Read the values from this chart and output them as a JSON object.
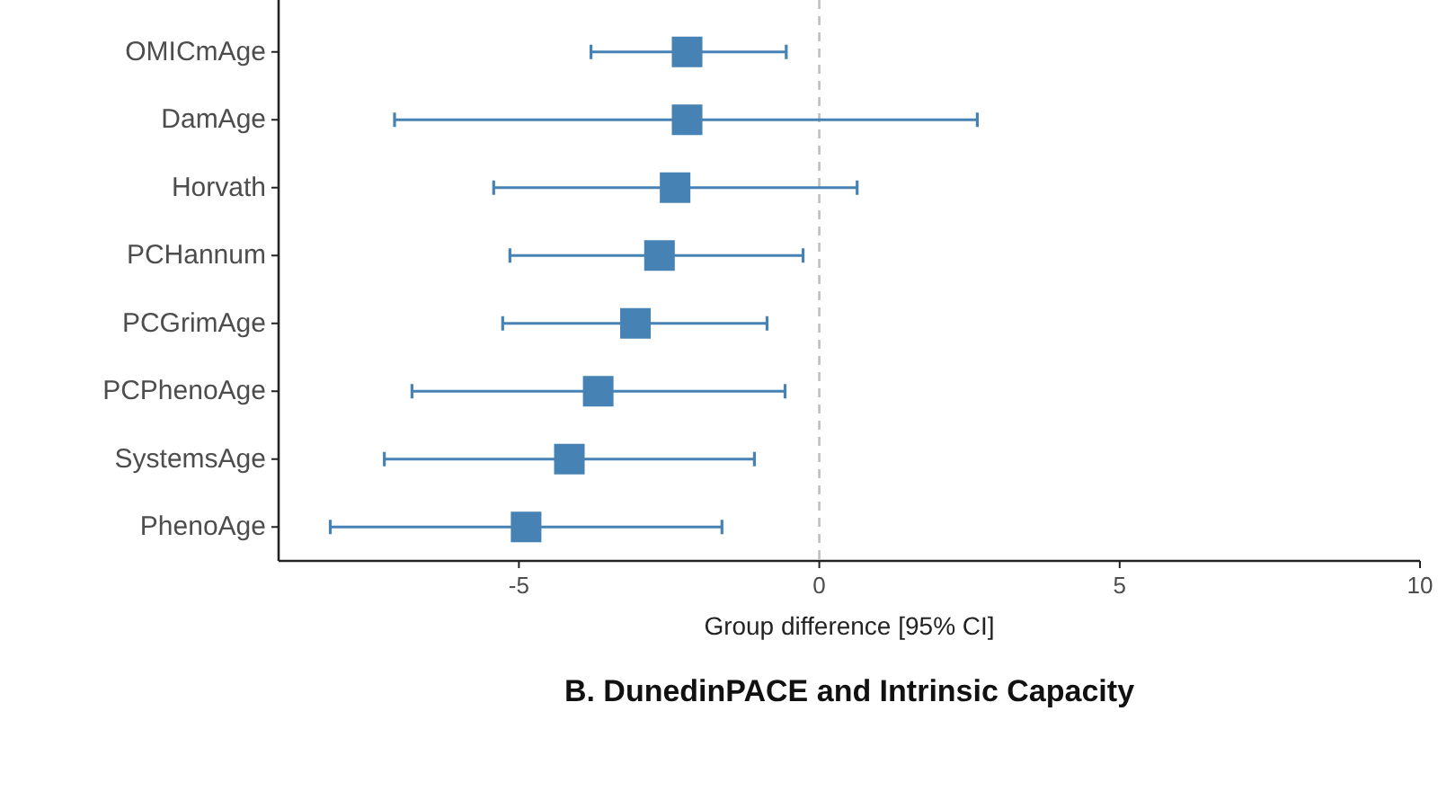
{
  "chart_data": {
    "type": "scatter",
    "orientation": "horizontal",
    "categories": [
      "OMICmAge",
      "DamAge",
      "Horvath",
      "PCHannum",
      "PCGrimAge",
      "PCPhenoAge",
      "SystemsAge",
      "PhenoAge"
    ],
    "values": [
      -2.2,
      -2.2,
      -2.4,
      -2.66,
      -3.06,
      -3.68,
      -4.16,
      -4.88
    ],
    "errors": [
      [
        -3.8,
        -0.55
      ],
      [
        -7.07,
        2.63
      ],
      [
        -5.42,
        0.63
      ],
      [
        -5.15,
        -0.27
      ],
      [
        -5.27,
        -0.87
      ],
      [
        -6.78,
        -0.57
      ],
      [
        -7.24,
        -1.08
      ],
      [
        -8.14,
        -1.62
      ]
    ],
    "color": "#4682b4",
    "marker": "square",
    "xlim": [
      -9,
      10
    ],
    "xticks": [
      -5,
      0,
      5,
      10
    ],
    "xlabel": "Group difference [95% CI]",
    "ref_lines": [
      {
        "axis": "x",
        "value": 0,
        "color": "#c0c0c0",
        "line_style": "dashed"
      }
    ],
    "grid": false,
    "annotations": [
      "B. DunedinPACE and Intrinsic Capacity"
    ]
  }
}
